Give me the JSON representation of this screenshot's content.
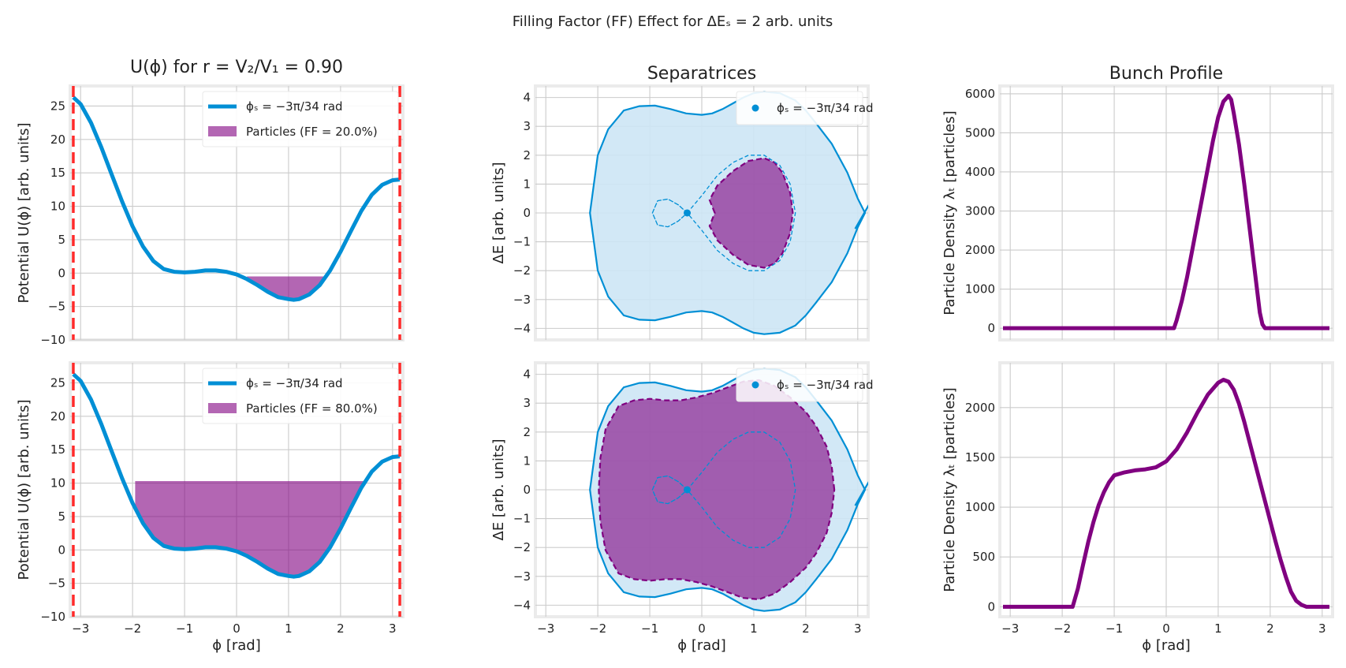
{
  "figure": {
    "suptitle": "Filling Factor (FF) Effect for ΔEₛ = 2 arb. units"
  },
  "colors": {
    "potential": "#008fd5",
    "particles": "#800080",
    "separatrix_fill": "#cde6f5",
    "boundary": "#ff2a2a"
  },
  "chart_data": [
    {
      "id": "potential-top",
      "type": "area",
      "title": "U(ϕ) for r = V₂/V₁ = 0.90",
      "xlabel": "",
      "ylabel": "Potential U(ϕ) [arb. units]",
      "xlim": [
        -3.2,
        3.2
      ],
      "ylim": [
        -10,
        28
      ],
      "xticks": [
        -3,
        -2,
        -1,
        0,
        1,
        2,
        3
      ],
      "yticks": [
        -10,
        -5,
        0,
        5,
        10,
        15,
        20,
        25
      ],
      "xtick_labels_shown": false,
      "grid": true,
      "legend_position": "upper-right",
      "legend": [
        "ϕₛ = −3π/34 rad",
        "Particles (FF = 20.0%)"
      ],
      "potential_curve": {
        "x": [
          -3.14,
          -3.0,
          -2.8,
          -2.6,
          -2.4,
          -2.2,
          -2.0,
          -1.8,
          -1.6,
          -1.4,
          -1.2,
          -1.0,
          -0.8,
          -0.6,
          -0.4,
          -0.2,
          0.0,
          0.2,
          0.4,
          0.6,
          0.8,
          1.0,
          1.1,
          1.2,
          1.4,
          1.6,
          1.8,
          2.0,
          2.2,
          2.4,
          2.6,
          2.8,
          3.0,
          3.14
        ],
        "y": [
          26.3,
          25.3,
          22.5,
          18.8,
          14.7,
          10.7,
          7.0,
          4.0,
          1.8,
          0.6,
          0.2,
          0.1,
          0.2,
          0.4,
          0.4,
          0.2,
          -0.2,
          -0.9,
          -1.8,
          -2.8,
          -3.6,
          -3.9,
          -4.0,
          -3.9,
          -3.2,
          -1.8,
          0.4,
          3.2,
          6.3,
          9.3,
          11.7,
          13.2,
          13.9,
          14.0
        ]
      },
      "particles_fill": {
        "x_range": [
          0.2,
          1.7
        ],
        "level": -0.5,
        "label": "FF = 20.0%"
      },
      "boundary_lines_x": [
        -3.14,
        3.14
      ]
    },
    {
      "id": "separatrix-top",
      "type": "line",
      "title": "Separatrices",
      "xlabel": "",
      "ylabel": "ΔE [arb. units]",
      "xlim": [
        -3.2,
        3.2
      ],
      "ylim": [
        -4.4,
        4.4
      ],
      "xticks": [
        -3,
        -2,
        -1,
        0,
        1,
        2,
        3
      ],
      "yticks": [
        -4,
        -3,
        -2,
        -1,
        0,
        1,
        2,
        3,
        4
      ],
      "xtick_labels_shown": false,
      "grid": true,
      "legend_position": "upper-right",
      "legend": [
        "ϕₛ = −3π/34 rad"
      ],
      "synchronous_point": [
        -0.28,
        0
      ],
      "outer_separatrix": {
        "x": [
          3.14,
          3.0,
          2.8,
          2.5,
          2.2,
          2.0,
          1.8,
          1.5,
          1.2,
          1.0,
          0.8,
          0.6,
          0.4,
          0.2,
          0.0,
          -0.3,
          -0.6,
          -0.9,
          -1.2,
          -1.5,
          -1.8,
          -2.0,
          -2.15
        ],
        "y": [
          0,
          0.5,
          1.4,
          2.4,
          3.1,
          3.55,
          3.9,
          4.15,
          4.2,
          4.15,
          4.0,
          3.8,
          3.6,
          3.45,
          3.4,
          3.45,
          3.6,
          3.72,
          3.7,
          3.55,
          2.9,
          2.0,
          0
        ]
      },
      "inner_separatrix": {
        "x": [
          -0.28,
          -0.45,
          -0.65,
          -0.85,
          -0.95,
          -0.85,
          -0.65,
          -0.45,
          -0.28,
          0.0,
          0.3,
          0.6,
          0.9,
          1.2,
          1.5,
          1.7,
          1.8
        ],
        "y": [
          0,
          0.28,
          0.48,
          0.42,
          0.0,
          -0.42,
          -0.48,
          -0.28,
          0,
          0.6,
          1.3,
          1.75,
          2.0,
          2.0,
          1.65,
          1.0,
          0
        ]
      },
      "particle_boundary": {
        "x": [
          0.25,
          0.15,
          0.3,
          0.6,
          0.9,
          1.2,
          1.4,
          1.55,
          1.7,
          1.75
        ],
        "y": [
          0,
          0.45,
          0.95,
          1.45,
          1.8,
          1.9,
          1.75,
          1.4,
          0.7,
          0
        ]
      }
    },
    {
      "id": "bunch-top",
      "type": "line",
      "title": "Bunch Profile",
      "xlabel": "",
      "ylabel": "Particle Density λₜ [particles]",
      "xlim": [
        -3.2,
        3.2
      ],
      "ylim": [
        -300,
        6200
      ],
      "xticks": [
        -3,
        -2,
        -1,
        0,
        1,
        2,
        3
      ],
      "yticks": [
        0,
        1000,
        2000,
        3000,
        4000,
        5000,
        6000
      ],
      "xtick_labels_shown": false,
      "grid": true,
      "x": [
        -3.14,
        0.15,
        0.2,
        0.3,
        0.4,
        0.5,
        0.6,
        0.7,
        0.8,
        0.9,
        1.0,
        1.1,
        1.2,
        1.25,
        1.3,
        1.4,
        1.5,
        1.6,
        1.7,
        1.8,
        1.85,
        1.9,
        3.14
      ],
      "y": [
        0,
        0,
        200,
        700,
        1300,
        2000,
        2700,
        3400,
        4100,
        4800,
        5400,
        5800,
        5950,
        5850,
        5500,
        4700,
        3700,
        2600,
        1500,
        400,
        100,
        0,
        0
      ]
    },
    {
      "id": "potential-bottom",
      "type": "area",
      "title": "",
      "xlabel": "ϕ [rad]",
      "ylabel": "Potential U(ϕ) [arb. units]",
      "xlim": [
        -3.2,
        3.2
      ],
      "ylim": [
        -10,
        28
      ],
      "xticks": [
        -3,
        -2,
        -1,
        0,
        1,
        2,
        3
      ],
      "yticks": [
        -10,
        -5,
        0,
        5,
        10,
        15,
        20,
        25
      ],
      "xtick_labels_shown": true,
      "grid": true,
      "legend_position": "upper-right",
      "legend": [
        "ϕₛ = −3π/34 rad",
        "Particles (FF = 80.0%)"
      ],
      "potential_curve": {
        "x": [
          -3.14,
          -3.0,
          -2.8,
          -2.6,
          -2.4,
          -2.2,
          -2.0,
          -1.8,
          -1.6,
          -1.4,
          -1.2,
          -1.0,
          -0.8,
          -0.6,
          -0.4,
          -0.2,
          0.0,
          0.2,
          0.4,
          0.6,
          0.8,
          1.0,
          1.1,
          1.2,
          1.4,
          1.6,
          1.8,
          2.0,
          2.2,
          2.4,
          2.6,
          2.8,
          3.0,
          3.14
        ],
        "y": [
          26.3,
          25.3,
          22.5,
          18.8,
          14.7,
          10.7,
          7.0,
          4.0,
          1.8,
          0.6,
          0.2,
          0.1,
          0.2,
          0.4,
          0.4,
          0.2,
          -0.2,
          -0.9,
          -1.8,
          -2.8,
          -3.6,
          -3.9,
          -4.0,
          -3.9,
          -3.2,
          -1.8,
          0.4,
          3.2,
          6.3,
          9.3,
          11.7,
          13.2,
          13.9,
          14.0
        ]
      },
      "particles_fill": {
        "x_range": [
          -1.95,
          3.14
        ],
        "level": 10.3,
        "label": "FF = 80.0%"
      },
      "boundary_lines_x": [
        -3.14,
        3.14
      ]
    },
    {
      "id": "separatrix-bottom",
      "type": "line",
      "title": "",
      "xlabel": "ϕ [rad]",
      "ylabel": "ΔE [arb. units]",
      "xlim": [
        -3.2,
        3.2
      ],
      "ylim": [
        -4.4,
        4.4
      ],
      "xticks": [
        -3,
        -2,
        -1,
        0,
        1,
        2,
        3
      ],
      "yticks": [
        -4,
        -3,
        -2,
        -1,
        0,
        1,
        2,
        3,
        4
      ],
      "xtick_labels_shown": true,
      "grid": true,
      "legend_position": "upper-right",
      "legend": [
        "ϕₛ = −3π/34 rad"
      ],
      "synchronous_point": [
        -0.28,
        0
      ],
      "outer_separatrix": {
        "x": [
          3.14,
          3.0,
          2.8,
          2.5,
          2.2,
          2.0,
          1.8,
          1.5,
          1.2,
          1.0,
          0.8,
          0.6,
          0.4,
          0.2,
          0.0,
          -0.3,
          -0.6,
          -0.9,
          -1.2,
          -1.5,
          -1.8,
          -2.0,
          -2.15
        ],
        "y": [
          0,
          0.5,
          1.4,
          2.4,
          3.1,
          3.55,
          3.9,
          4.15,
          4.2,
          4.15,
          4.0,
          3.8,
          3.6,
          3.45,
          3.4,
          3.45,
          3.6,
          3.72,
          3.7,
          3.55,
          2.9,
          2.0,
          0
        ]
      },
      "inner_separatrix": {
        "x": [
          -0.28,
          -0.45,
          -0.65,
          -0.85,
          -0.95,
          -0.85,
          -0.65,
          -0.45,
          -0.28,
          0.0,
          0.3,
          0.6,
          0.9,
          1.2,
          1.5,
          1.7,
          1.8
        ],
        "y": [
          0,
          0.28,
          0.48,
          0.42,
          0.0,
          -0.42,
          -0.48,
          -0.28,
          0,
          0.6,
          1.3,
          1.75,
          2.0,
          2.0,
          1.65,
          1.0,
          0
        ]
      },
      "particle_boundary": {
        "x": [
          2.55,
          2.5,
          2.4,
          2.2,
          2.0,
          1.7,
          1.4,
          1.1,
          0.8,
          0.5,
          0.2,
          -0.1,
          -0.4,
          -0.7,
          -1.0,
          -1.3,
          -1.6,
          -1.85,
          -1.95,
          -1.98
        ],
        "y": [
          0,
          0.8,
          1.5,
          2.2,
          2.7,
          3.2,
          3.6,
          3.8,
          3.75,
          3.55,
          3.35,
          3.2,
          3.1,
          3.1,
          3.15,
          3.1,
          2.9,
          2.1,
          1.1,
          0
        ]
      }
    },
    {
      "id": "bunch-bottom",
      "type": "line",
      "title": "",
      "xlabel": "ϕ [rad]",
      "ylabel": "Particle Density λₜ [particles]",
      "xlim": [
        -3.2,
        3.2
      ],
      "ylim": [
        -100,
        2450
      ],
      "xticks": [
        -3,
        -2,
        -1,
        0,
        1,
        2,
        3
      ],
      "yticks": [
        0,
        500,
        1000,
        1500,
        2000
      ],
      "xtick_labels_shown": true,
      "grid": true,
      "x": [
        -3.14,
        -1.8,
        -1.7,
        -1.6,
        -1.5,
        -1.4,
        -1.3,
        -1.2,
        -1.1,
        -1.0,
        -0.8,
        -0.6,
        -0.4,
        -0.2,
        0.0,
        0.2,
        0.4,
        0.6,
        0.8,
        1.0,
        1.1,
        1.2,
        1.3,
        1.4,
        1.5,
        1.6,
        1.7,
        1.8,
        1.9,
        2.0,
        2.1,
        2.2,
        2.3,
        2.4,
        2.5,
        2.6,
        2.7,
        2.8,
        3.14
      ],
      "y": [
        0,
        0,
        180,
        420,
        650,
        850,
        1020,
        1150,
        1250,
        1320,
        1350,
        1370,
        1380,
        1400,
        1460,
        1580,
        1750,
        1950,
        2130,
        2250,
        2280,
        2260,
        2180,
        2040,
        1860,
        1660,
        1460,
        1260,
        1060,
        860,
        660,
        470,
        300,
        150,
        60,
        20,
        0,
        0,
        0
      ]
    }
  ]
}
